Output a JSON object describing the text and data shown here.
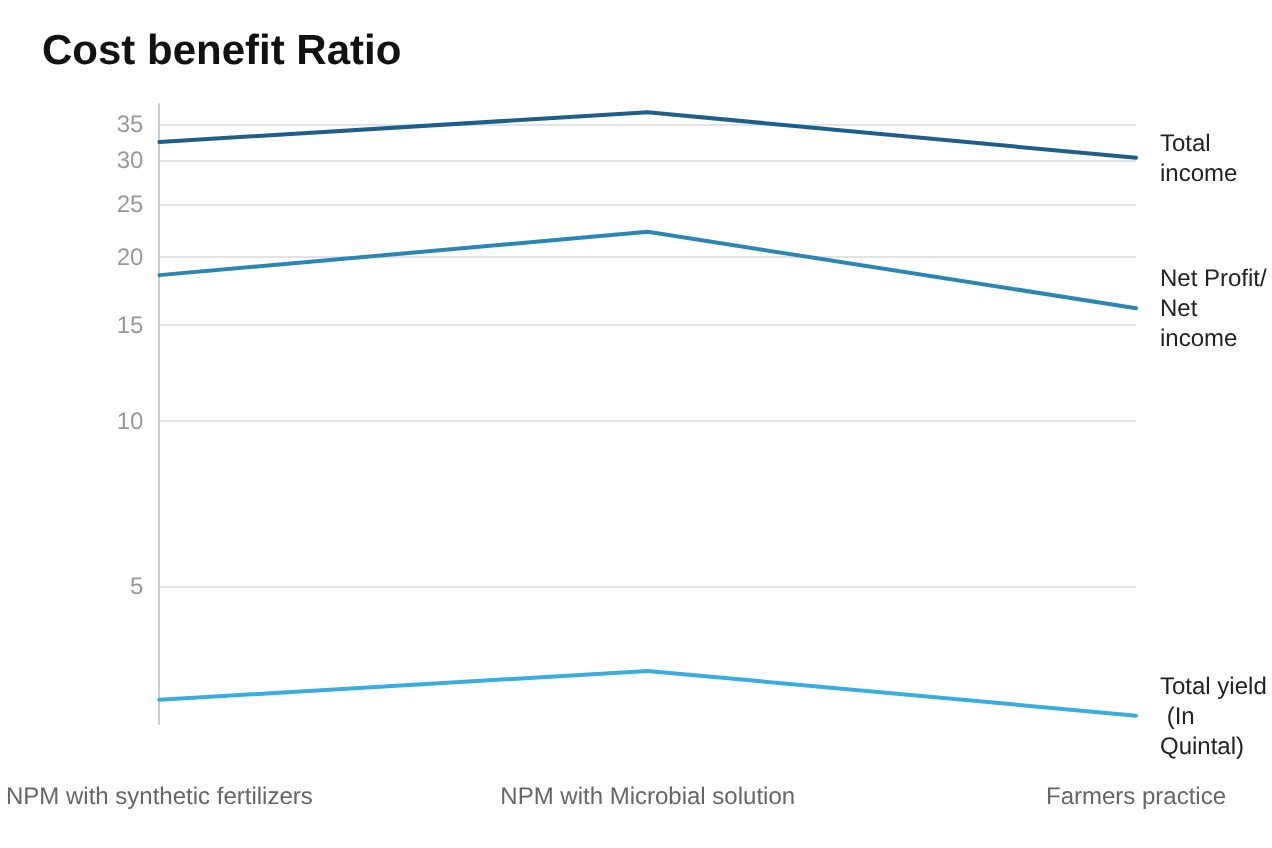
{
  "chart_data": {
    "type": "line",
    "title": "Cost benefit Ratio",
    "categories": [
      "NPM with synthetic fertilizers",
      "NPM with Microbial solution",
      "Farmers practice"
    ],
    "series": [
      {
        "name": "Total income",
        "color": "#1d5f8a",
        "values": [
          32.4,
          36.7,
          30.3
        ]
      },
      {
        "name": "Net Profit/ Net income",
        "color": "#2a86b4",
        "values": [
          18.5,
          22.2,
          16.1
        ]
      },
      {
        "name": "Total yield (In Quintal)",
        "color": "#38ade0",
        "values": [
          3.1,
          3.5,
          2.9
        ]
      }
    ],
    "log": "y",
    "ylim": [
      2.8,
      38
    ],
    "yticks": [
      5,
      10,
      15,
      20,
      25,
      30,
      35
    ],
    "grid": "y",
    "legend": false,
    "marker": "none",
    "line_style": "solid"
  }
}
